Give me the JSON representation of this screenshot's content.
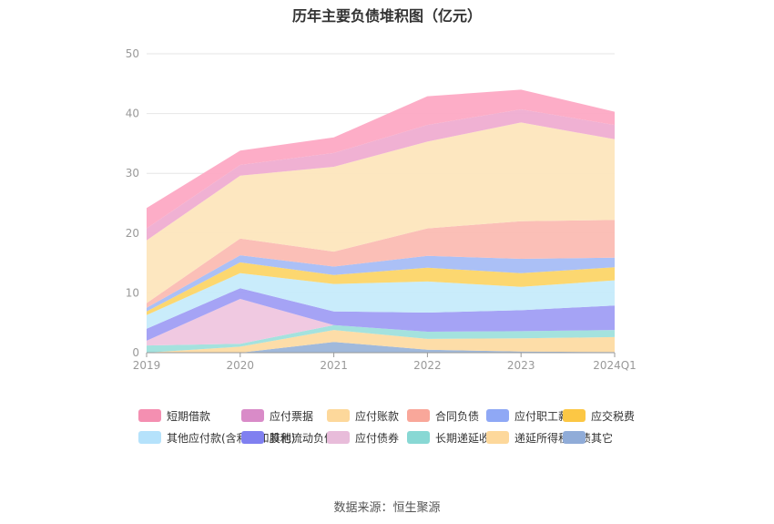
{
  "title": "历年主要负债堆积图（亿元）",
  "source": "数据来源：恒生聚源",
  "chart_data": {
    "type": "area",
    "stacked": true,
    "categories": [
      "2019",
      "2020",
      "2021",
      "2022",
      "2023",
      "2024Q1"
    ],
    "ylim": [
      0,
      50
    ],
    "yticks": [
      0,
      10,
      20,
      30,
      40,
      50
    ],
    "grid": true,
    "legend_position": "bottom",
    "series": [
      {
        "name": "其它",
        "color": "#9bb5d9",
        "values": [
          0,
          0,
          1.8,
          0.5,
          0.2,
          0.1
        ]
      },
      {
        "name": "递延所得税负债",
        "color": "#fddba3",
        "values": [
          0,
          1.0,
          2.0,
          1.8,
          2.2,
          2.5
        ]
      },
      {
        "name": "长期递延收益",
        "color": "#9fe0dc",
        "values": [
          1.2,
          0.5,
          0.8,
          1.2,
          1.2,
          1.2
        ]
      },
      {
        "name": "应付债券",
        "color": "#efc6df",
        "values": [
          0.8,
          7.5,
          0,
          0,
          0,
          0
        ]
      },
      {
        "name": "其他流动负债",
        "color": "#a09ef4",
        "values": [
          2.0,
          1.8,
          2.3,
          3.2,
          3.5,
          4.1
        ]
      },
      {
        "name": "其他应付款(含利息和股利)",
        "color": "#c6ebfb",
        "values": [
          2.3,
          2.5,
          4.6,
          5.2,
          3.9,
          4.2
        ]
      },
      {
        "name": "应交税费",
        "color": "#fcd568",
        "values": [
          0.6,
          1.8,
          1.5,
          2.3,
          2.3,
          2.2
        ]
      },
      {
        "name": "应付职工薪酬",
        "color": "#a7bdf6",
        "values": [
          0.6,
          1.2,
          1.4,
          2.0,
          2.4,
          1.6
        ]
      },
      {
        "name": "合同负债",
        "color": "#fbbcb3",
        "values": [
          0.8,
          2.8,
          2.5,
          4.6,
          6.3,
          6.3
        ]
      },
      {
        "name": "应付账款",
        "color": "#fde6bd",
        "values": [
          10.5,
          10.5,
          14.2,
          14.5,
          16.5,
          13.5
        ]
      },
      {
        "name": "应付票据",
        "color": "#efadd1",
        "values": [
          2.0,
          1.8,
          2.3,
          2.8,
          2.2,
          2.4
        ]
      },
      {
        "name": "短期借款",
        "color": "#fda9c4",
        "values": [
          3.4,
          2.4,
          2.6,
          4.8,
          3.3,
          2.2
        ]
      }
    ]
  },
  "legend_order": [
    "短期借款",
    "应付票据",
    "应付账款",
    "合同负债",
    "应付职工薪酬",
    "应交税费",
    "其他应付款(含利息和股利)",
    "其他流动负债",
    "应付债券",
    "长期递延收益",
    "递延所得税负债",
    "其它"
  ],
  "legend_colors": {
    "短期借款": "#f48fb1",
    "应付票据": "#d98bc8",
    "应付账款": "#fdd89b",
    "合同负债": "#f9a79a",
    "应付职工薪酬": "#8fa8f5",
    "应交税费": "#fcc744",
    "其他应付款(含利息和股利)": "#b5e2fb",
    "其他流动负债": "#8080f0",
    "应付债券": "#e8bcda",
    "长期递延收益": "#88d8d4",
    "递延所得税负债": "#fdd89b",
    "其它": "#90acd8"
  }
}
